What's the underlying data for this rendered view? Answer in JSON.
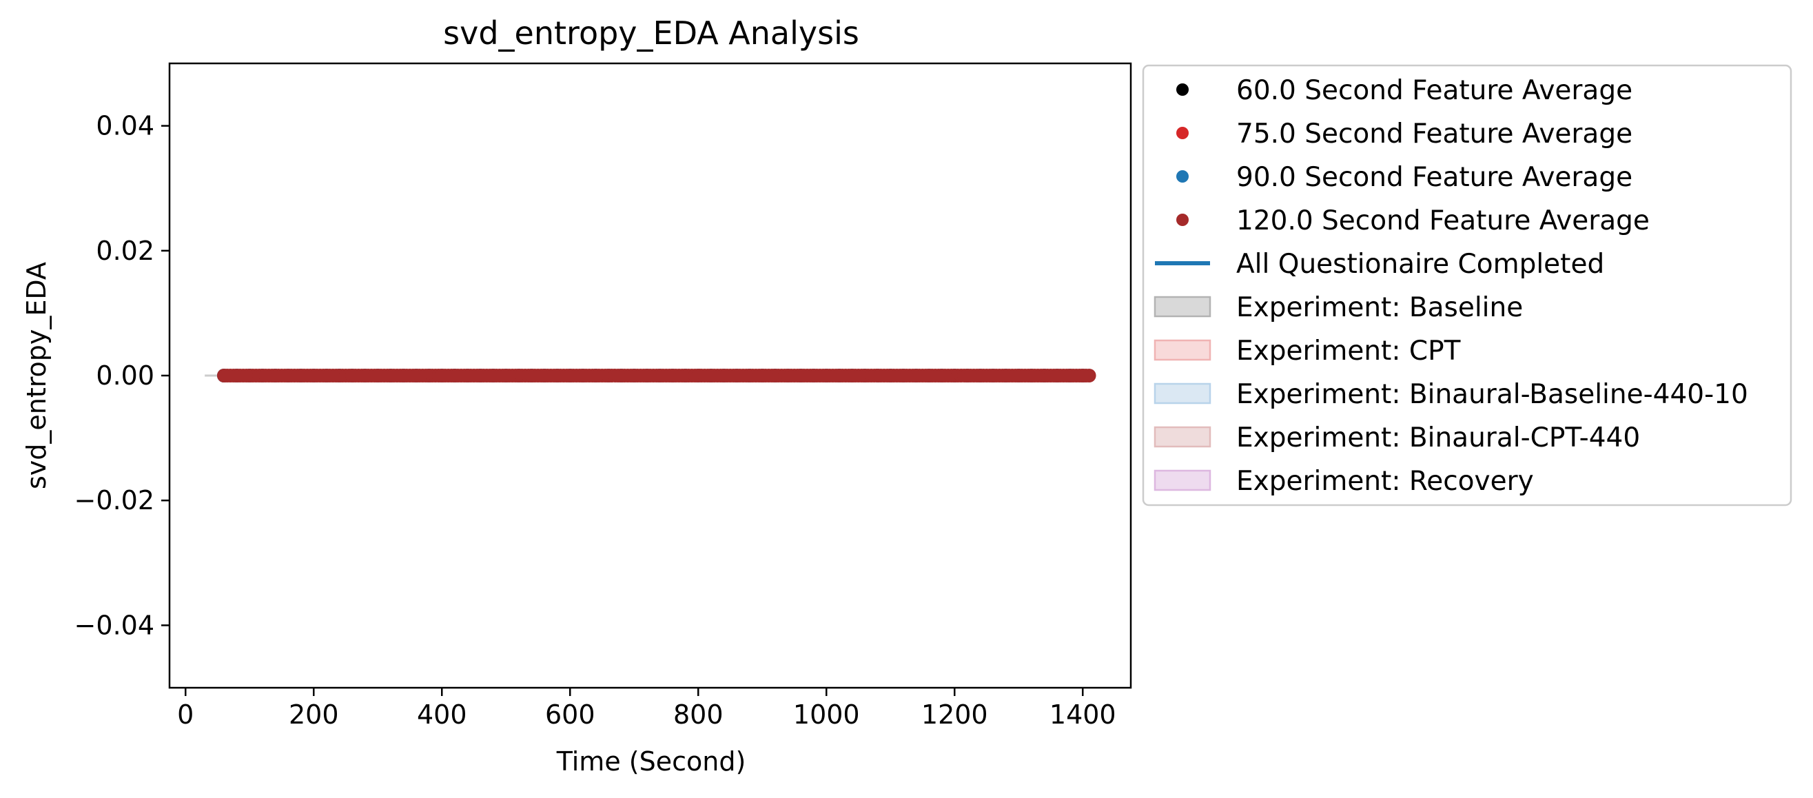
{
  "chart_data": {
    "type": "scatter",
    "title": "svd_entropy_EDA Analysis",
    "xlabel": "Time (Second)",
    "ylabel": "svd_entropy_EDA",
    "xlim": [
      -25,
      1475
    ],
    "ylim": [
      -0.05,
      0.05
    ],
    "x_ticks": [
      0,
      200,
      400,
      600,
      800,
      1000,
      1200,
      1400
    ],
    "x_tick_labels": [
      "0",
      "200",
      "400",
      "600",
      "800",
      "1000",
      "1200",
      "1400"
    ],
    "y_ticks": [
      0.04,
      0.02,
      0.0,
      -0.02,
      -0.04
    ],
    "y_tick_labels": [
      "0.04",
      "0.02",
      "0.00",
      "−0.02",
      "−0.04"
    ],
    "grid": false,
    "legend_position": "outside-right",
    "series": [
      {
        "name": "60.0 Second Feature Average",
        "marker": "dot",
        "color": "#000000",
        "x_range": [
          60,
          1410
        ],
        "y": 0.0
      },
      {
        "name": "75.0 Second Feature Average",
        "marker": "dot",
        "color": "#d62728",
        "x_range": [
          60,
          1410
        ],
        "y": 0.0
      },
      {
        "name": "90.0 Second Feature Average",
        "marker": "dot",
        "color": "#1f77b4",
        "x_range": [
          60,
          1410
        ],
        "y": 0.0
      },
      {
        "name": "120.0 Second Feature Average",
        "marker": "dot",
        "color": "#a52a2a",
        "x_range": [
          60,
          1410
        ],
        "y": 0.0,
        "step": 5
      },
      {
        "name": "All Questionaire Completed",
        "marker": "line",
        "color": "#1f77b4"
      }
    ],
    "raw_signal": {
      "color": "#cccccc",
      "x_range": [
        30,
        1410
      ],
      "y": 0.0
    },
    "experiments": [
      {
        "name": "Experiment: Baseline",
        "fill": "#d9d9d9",
        "edge": "#b3b3b3"
      },
      {
        "name": "Experiment: CPT",
        "fill": "#f8dada",
        "edge": "#f0b3b3"
      },
      {
        "name": "Experiment: Binaural-Baseline-440-10",
        "fill": "#dbe8f3",
        "edge": "#b8d3ea"
      },
      {
        "name": "Experiment: Binaural-CPT-440",
        "fill": "#efdcdc",
        "edge": "#e2bcbc"
      },
      {
        "name": "Experiment: Recovery",
        "fill": "#eedbef",
        "edge": "#ddb7e0"
      }
    ]
  }
}
